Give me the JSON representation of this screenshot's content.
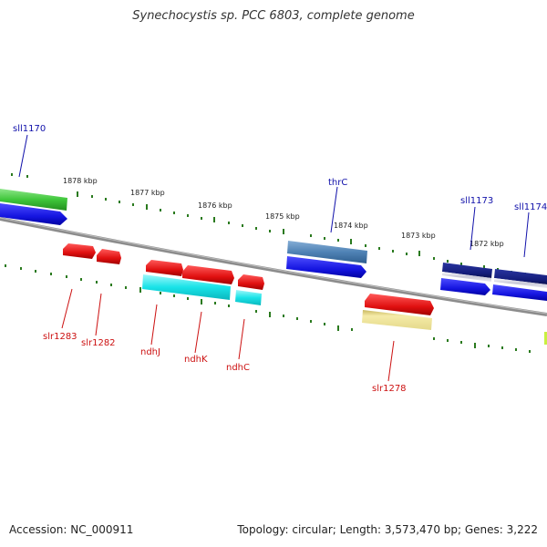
{
  "title": "Synechocystis sp. PCC 6803, complete genome",
  "footer": {
    "accession": "Accession: NC_000911",
    "summary": "Topology: circular; Length: 3,573,470 bp; Genes: 3,222"
  },
  "scale_labels": [
    "1878 kbp",
    "1877 kbp",
    "1876 kbp",
    "1875 kbp",
    "1874 kbp",
    "1873 kbp",
    "1872 kbp"
  ],
  "gene_labels_top": [
    "sll1170",
    "thrC",
    "sll1173",
    "sll1174"
  ],
  "gene_labels_bottom": [
    "slr1283",
    "slr1282",
    "ndhJ",
    "ndhK",
    "ndhC",
    "slr1278"
  ],
  "colors": {
    "backbone": "#808080",
    "tick": "#2a7a1e",
    "forward_gene": "#e01010",
    "reverse_gene": "#1515e0",
    "cds_cyan": "#19e3e8",
    "cds_green": "#3fc63a",
    "cds_steelblue": "#4f82b5",
    "cds_navy": "#131c7a",
    "cds_khaki": "#efe59a",
    "label_top": "#1010aa",
    "label_bottom": "#cc1111"
  }
}
